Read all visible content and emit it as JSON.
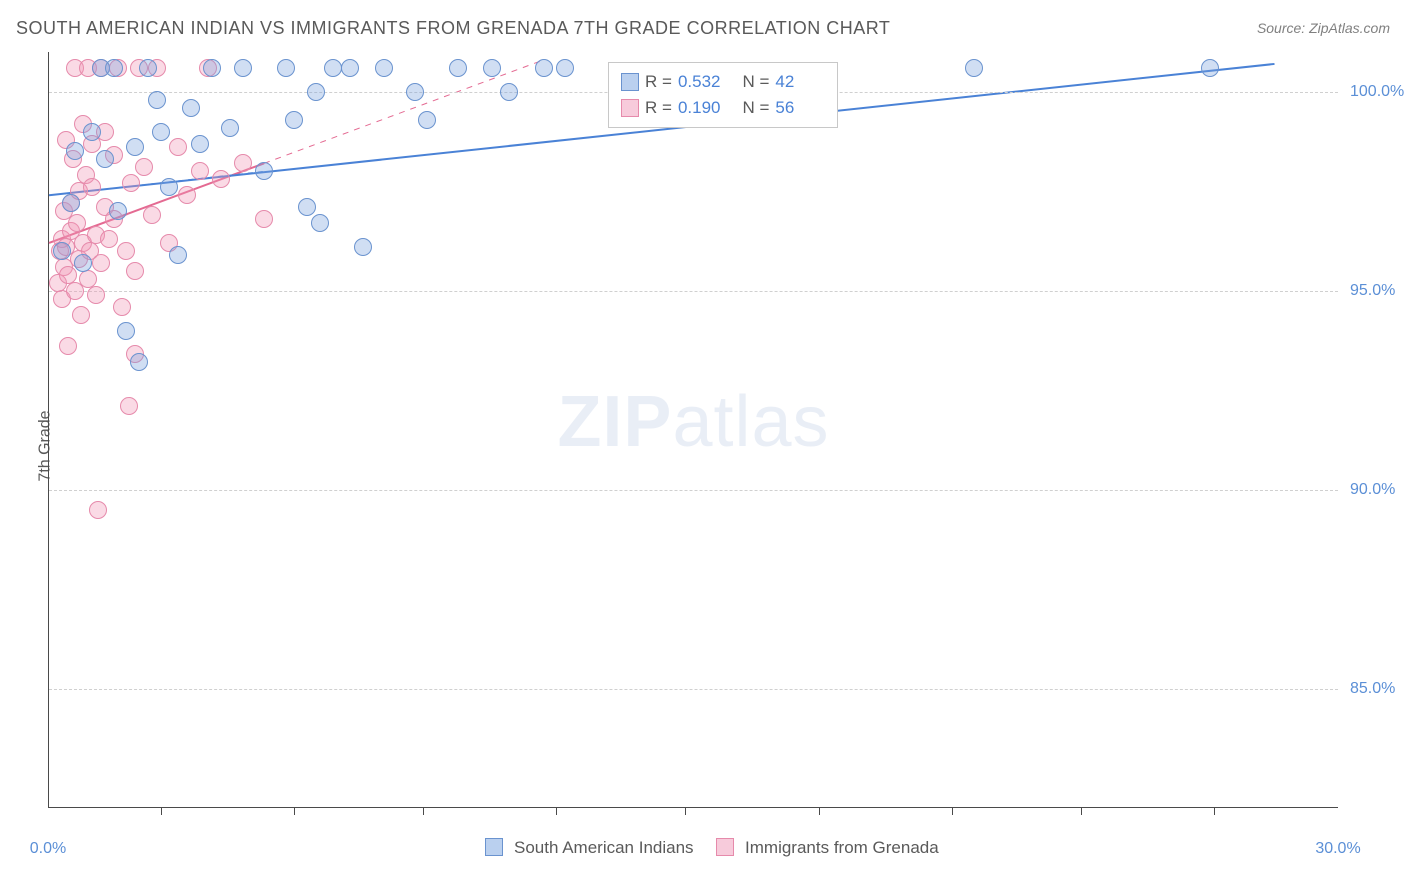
{
  "header": {
    "title": "SOUTH AMERICAN INDIAN VS IMMIGRANTS FROM GRENADA 7TH GRADE CORRELATION CHART",
    "source": "Source: ZipAtlas.com"
  },
  "axes": {
    "y_label": "7th Grade",
    "x_min": 0.0,
    "x_max": 30.0,
    "y_min": 82.0,
    "y_max": 101.0,
    "y_ticks": [
      85.0,
      90.0,
      95.0,
      100.0
    ],
    "y_tick_labels": [
      "85.0%",
      "90.0%",
      "95.0%",
      "100.0%"
    ],
    "x_tick_labels": [
      "0.0%",
      "30.0%"
    ],
    "x_minor_ticks": [
      2.6,
      5.7,
      8.7,
      11.8,
      14.8,
      17.9,
      21.0,
      24.0,
      27.1
    ]
  },
  "watermark": {
    "zip": "ZIP",
    "atlas": "atlas"
  },
  "stats_legend": {
    "rows": [
      {
        "swatch": "blue",
        "r_label": "R =",
        "r_val": "0.532",
        "n_label": "N =",
        "n_val": "42"
      },
      {
        "swatch": "pink",
        "r_label": "R =",
        "r_val": "0.190",
        "n_label": "N =",
        "n_val": "56"
      }
    ]
  },
  "bottom_legend": {
    "series": [
      {
        "swatch": "blue",
        "label": "South American Indians"
      },
      {
        "swatch": "pink",
        "label": "Immigrants from Grenada"
      }
    ]
  },
  "trend_lines": {
    "blue_solid": {
      "x1": 0.0,
      "y1": 97.4,
      "x2": 28.5,
      "y2": 100.7,
      "color": "#4a82d6",
      "width": 2,
      "dash": "none"
    },
    "blue_dash": {
      "x1": 0.0,
      "y1": 97.4,
      "x2": 5.0,
      "y2": 98.0,
      "color": "#4a82d6",
      "width": 1,
      "dash": "5,5"
    },
    "pink_solid": {
      "x1": 0.0,
      "y1": 96.2,
      "x2": 5.0,
      "y2": 98.2,
      "color": "#e46a92",
      "width": 2,
      "dash": "none"
    },
    "pink_dash": {
      "x1": 5.0,
      "y1": 98.2,
      "x2": 11.5,
      "y2": 100.8,
      "color": "#e46a92",
      "width": 1,
      "dash": "6,6"
    }
  },
  "series": {
    "blue": {
      "color_fill": "rgba(120,160,220,0.35)",
      "color_stroke": "#6a93cf",
      "points": [
        [
          0.3,
          96.0
        ],
        [
          0.5,
          97.2
        ],
        [
          0.6,
          98.5
        ],
        [
          0.8,
          95.7
        ],
        [
          1.0,
          99.0
        ],
        [
          1.2,
          100.6
        ],
        [
          1.3,
          98.3
        ],
        [
          1.5,
          100.6
        ],
        [
          1.6,
          97.0
        ],
        [
          1.8,
          94.0
        ],
        [
          2.0,
          98.6
        ],
        [
          2.1,
          93.2
        ],
        [
          2.3,
          100.6
        ],
        [
          2.5,
          99.8
        ],
        [
          2.6,
          99.0
        ],
        [
          2.8,
          97.6
        ],
        [
          3.0,
          95.9
        ],
        [
          3.3,
          99.6
        ],
        [
          3.5,
          98.7
        ],
        [
          3.8,
          100.6
        ],
        [
          4.2,
          99.1
        ],
        [
          4.5,
          100.6
        ],
        [
          5.0,
          98.0
        ],
        [
          5.5,
          100.6
        ],
        [
          5.7,
          99.3
        ],
        [
          6.0,
          97.1
        ],
        [
          6.2,
          100.0
        ],
        [
          6.3,
          96.7
        ],
        [
          6.6,
          100.6
        ],
        [
          7.0,
          100.6
        ],
        [
          7.3,
          96.1
        ],
        [
          7.8,
          100.6
        ],
        [
          8.5,
          100.0
        ],
        [
          8.8,
          99.3
        ],
        [
          9.5,
          100.6
        ],
        [
          10.3,
          100.6
        ],
        [
          10.7,
          100.0
        ],
        [
          11.5,
          100.6
        ],
        [
          12.0,
          100.6
        ],
        [
          13.5,
          100.2
        ],
        [
          21.5,
          100.6
        ],
        [
          27.0,
          100.6
        ]
      ]
    },
    "pink": {
      "color_fill": "rgba(240,150,180,0.35)",
      "color_stroke": "#e68aab",
      "points": [
        [
          0.2,
          95.2
        ],
        [
          0.25,
          96.0
        ],
        [
          0.3,
          96.3
        ],
        [
          0.3,
          94.8
        ],
        [
          0.35,
          95.6
        ],
        [
          0.35,
          97.0
        ],
        [
          0.4,
          98.8
        ],
        [
          0.4,
          96.1
        ],
        [
          0.45,
          95.4
        ],
        [
          0.45,
          93.6
        ],
        [
          0.5,
          96.5
        ],
        [
          0.5,
          97.2
        ],
        [
          0.55,
          98.3
        ],
        [
          0.6,
          95.0
        ],
        [
          0.6,
          100.6
        ],
        [
          0.65,
          96.7
        ],
        [
          0.7,
          95.8
        ],
        [
          0.7,
          97.5
        ],
        [
          0.75,
          94.4
        ],
        [
          0.8,
          96.2
        ],
        [
          0.8,
          99.2
        ],
        [
          0.85,
          97.9
        ],
        [
          0.9,
          95.3
        ],
        [
          0.9,
          100.6
        ],
        [
          0.95,
          96.0
        ],
        [
          1.0,
          97.6
        ],
        [
          1.0,
          98.7
        ],
        [
          1.1,
          94.9
        ],
        [
          1.1,
          96.4
        ],
        [
          1.15,
          89.5
        ],
        [
          1.2,
          100.6
        ],
        [
          1.2,
          95.7
        ],
        [
          1.3,
          97.1
        ],
        [
          1.3,
          99.0
        ],
        [
          1.4,
          96.3
        ],
        [
          1.5,
          98.4
        ],
        [
          1.5,
          96.8
        ],
        [
          1.6,
          100.6
        ],
        [
          1.7,
          94.6
        ],
        [
          1.8,
          96.0
        ],
        [
          1.85,
          92.1
        ],
        [
          1.9,
          97.7
        ],
        [
          2.0,
          95.5
        ],
        [
          2.0,
          93.4
        ],
        [
          2.1,
          100.6
        ],
        [
          2.2,
          98.1
        ],
        [
          2.4,
          96.9
        ],
        [
          2.5,
          100.6
        ],
        [
          2.8,
          96.2
        ],
        [
          3.0,
          98.6
        ],
        [
          3.2,
          97.4
        ],
        [
          3.5,
          98.0
        ],
        [
          3.7,
          100.6
        ],
        [
          4.0,
          97.8
        ],
        [
          4.5,
          98.2
        ],
        [
          5.0,
          96.8
        ]
      ]
    }
  }
}
